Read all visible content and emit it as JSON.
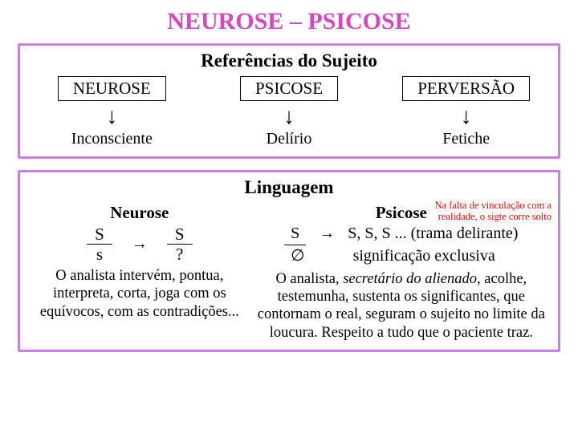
{
  "colors": {
    "title": "#d946bf",
    "panel_border": "#c77fe3",
    "sidenote": "#ff0000"
  },
  "title": "NEUROSE  –  PSICOSE",
  "panel1": {
    "heading": "Referências do Sujeito",
    "items": [
      {
        "box": "NEUROSE",
        "dest": "Inconsciente"
      },
      {
        "box": "PSICOSE",
        "dest": "Delírio"
      },
      {
        "box": "PERVERSÃO",
        "dest": "Fetiche"
      }
    ]
  },
  "panel2": {
    "heading": "Linguagem",
    "left": {
      "subhead": "Neurose",
      "frac1_num": "S",
      "frac1_den": "s",
      "arrow": "→",
      "frac2_num": "S",
      "frac2_den": "?",
      "desc": "O analista intervém, pontua, interpreta, corta, joga com os equívocos, com as contradições..."
    },
    "right": {
      "subhead": "Psicose",
      "row1_left": "S",
      "row1_arrow": "→",
      "row1_rest": "S,  S,  S ... (trama delirante)",
      "row2_left": "∅",
      "row2_rest": "significação exclusiva",
      "sidenote": "Na falta de vinculação com a realidade, o sigte corre solto",
      "desc_pre": "O analista, ",
      "desc_ital": "secretário do alienado",
      "desc_post": ", acolhe, testemunha, sustenta os significantes, que contornam o real, seguram o sujeito no limite da loucura. Respeito a tudo que o paciente traz."
    }
  }
}
